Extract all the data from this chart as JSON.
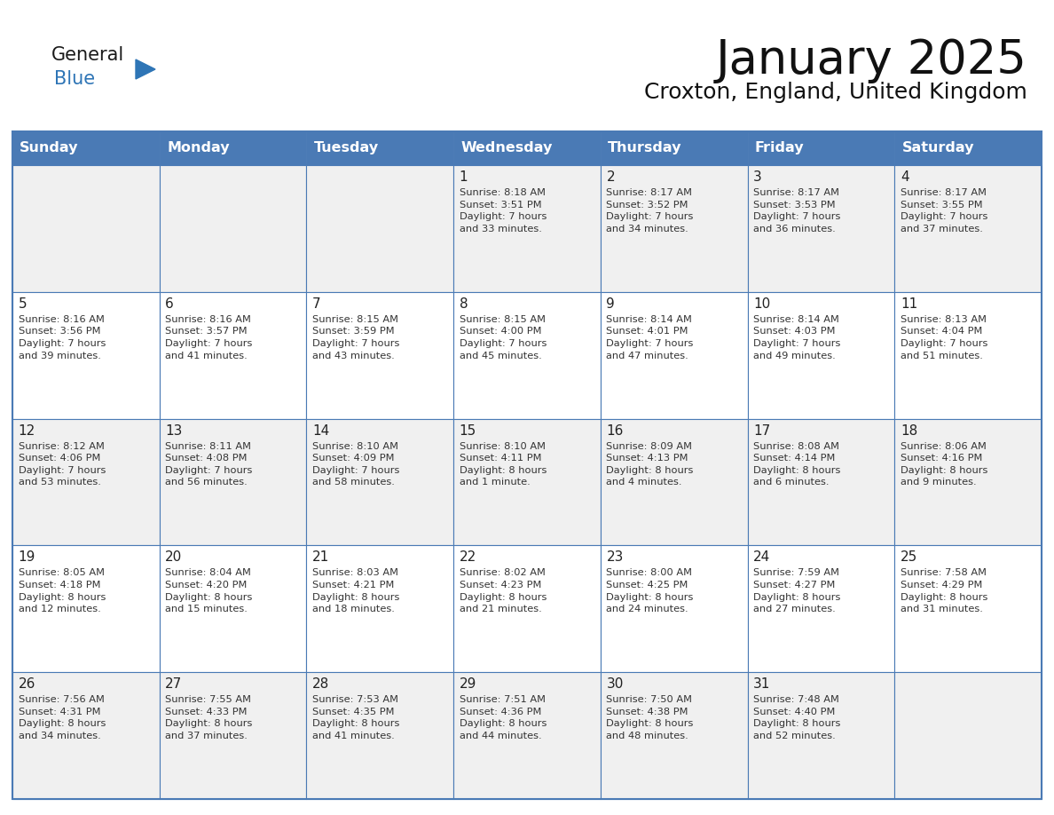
{
  "title": "January 2025",
  "subtitle": "Croxton, England, United Kingdom",
  "days_of_week": [
    "Sunday",
    "Monday",
    "Tuesday",
    "Wednesday",
    "Thursday",
    "Friday",
    "Saturday"
  ],
  "header_bg": "#4a7ab5",
  "header_text": "#FFFFFF",
  "cell_bg_row0": "#f0f0f0",
  "cell_bg_row1": "#ffffff",
  "cell_border": "#4a7ab5",
  "day_num_color": "#222222",
  "text_color": "#333333",
  "title_color": "#111111",
  "subtitle_color": "#111111",
  "logo_general_color": "#1a1a1a",
  "logo_blue_color": "#2E75B6",
  "figsize": [
    11.88,
    9.18
  ],
  "dpi": 100,
  "calendar": [
    [
      {
        "day": null,
        "info": ""
      },
      {
        "day": null,
        "info": ""
      },
      {
        "day": null,
        "info": ""
      },
      {
        "day": 1,
        "info": "Sunrise: 8:18 AM\nSunset: 3:51 PM\nDaylight: 7 hours\nand 33 minutes."
      },
      {
        "day": 2,
        "info": "Sunrise: 8:17 AM\nSunset: 3:52 PM\nDaylight: 7 hours\nand 34 minutes."
      },
      {
        "day": 3,
        "info": "Sunrise: 8:17 AM\nSunset: 3:53 PM\nDaylight: 7 hours\nand 36 minutes."
      },
      {
        "day": 4,
        "info": "Sunrise: 8:17 AM\nSunset: 3:55 PM\nDaylight: 7 hours\nand 37 minutes."
      }
    ],
    [
      {
        "day": 5,
        "info": "Sunrise: 8:16 AM\nSunset: 3:56 PM\nDaylight: 7 hours\nand 39 minutes."
      },
      {
        "day": 6,
        "info": "Sunrise: 8:16 AM\nSunset: 3:57 PM\nDaylight: 7 hours\nand 41 minutes."
      },
      {
        "day": 7,
        "info": "Sunrise: 8:15 AM\nSunset: 3:59 PM\nDaylight: 7 hours\nand 43 minutes."
      },
      {
        "day": 8,
        "info": "Sunrise: 8:15 AM\nSunset: 4:00 PM\nDaylight: 7 hours\nand 45 minutes."
      },
      {
        "day": 9,
        "info": "Sunrise: 8:14 AM\nSunset: 4:01 PM\nDaylight: 7 hours\nand 47 minutes."
      },
      {
        "day": 10,
        "info": "Sunrise: 8:14 AM\nSunset: 4:03 PM\nDaylight: 7 hours\nand 49 minutes."
      },
      {
        "day": 11,
        "info": "Sunrise: 8:13 AM\nSunset: 4:04 PM\nDaylight: 7 hours\nand 51 minutes."
      }
    ],
    [
      {
        "day": 12,
        "info": "Sunrise: 8:12 AM\nSunset: 4:06 PM\nDaylight: 7 hours\nand 53 minutes."
      },
      {
        "day": 13,
        "info": "Sunrise: 8:11 AM\nSunset: 4:08 PM\nDaylight: 7 hours\nand 56 minutes."
      },
      {
        "day": 14,
        "info": "Sunrise: 8:10 AM\nSunset: 4:09 PM\nDaylight: 7 hours\nand 58 minutes."
      },
      {
        "day": 15,
        "info": "Sunrise: 8:10 AM\nSunset: 4:11 PM\nDaylight: 8 hours\nand 1 minute."
      },
      {
        "day": 16,
        "info": "Sunrise: 8:09 AM\nSunset: 4:13 PM\nDaylight: 8 hours\nand 4 minutes."
      },
      {
        "day": 17,
        "info": "Sunrise: 8:08 AM\nSunset: 4:14 PM\nDaylight: 8 hours\nand 6 minutes."
      },
      {
        "day": 18,
        "info": "Sunrise: 8:06 AM\nSunset: 4:16 PM\nDaylight: 8 hours\nand 9 minutes."
      }
    ],
    [
      {
        "day": 19,
        "info": "Sunrise: 8:05 AM\nSunset: 4:18 PM\nDaylight: 8 hours\nand 12 minutes."
      },
      {
        "day": 20,
        "info": "Sunrise: 8:04 AM\nSunset: 4:20 PM\nDaylight: 8 hours\nand 15 minutes."
      },
      {
        "day": 21,
        "info": "Sunrise: 8:03 AM\nSunset: 4:21 PM\nDaylight: 8 hours\nand 18 minutes."
      },
      {
        "day": 22,
        "info": "Sunrise: 8:02 AM\nSunset: 4:23 PM\nDaylight: 8 hours\nand 21 minutes."
      },
      {
        "day": 23,
        "info": "Sunrise: 8:00 AM\nSunset: 4:25 PM\nDaylight: 8 hours\nand 24 minutes."
      },
      {
        "day": 24,
        "info": "Sunrise: 7:59 AM\nSunset: 4:27 PM\nDaylight: 8 hours\nand 27 minutes."
      },
      {
        "day": 25,
        "info": "Sunrise: 7:58 AM\nSunset: 4:29 PM\nDaylight: 8 hours\nand 31 minutes."
      }
    ],
    [
      {
        "day": 26,
        "info": "Sunrise: 7:56 AM\nSunset: 4:31 PM\nDaylight: 8 hours\nand 34 minutes."
      },
      {
        "day": 27,
        "info": "Sunrise: 7:55 AM\nSunset: 4:33 PM\nDaylight: 8 hours\nand 37 minutes."
      },
      {
        "day": 28,
        "info": "Sunrise: 7:53 AM\nSunset: 4:35 PM\nDaylight: 8 hours\nand 41 minutes."
      },
      {
        "day": 29,
        "info": "Sunrise: 7:51 AM\nSunset: 4:36 PM\nDaylight: 8 hours\nand 44 minutes."
      },
      {
        "day": 30,
        "info": "Sunrise: 7:50 AM\nSunset: 4:38 PM\nDaylight: 8 hours\nand 48 minutes."
      },
      {
        "day": 31,
        "info": "Sunrise: 7:48 AM\nSunset: 4:40 PM\nDaylight: 8 hours\nand 52 minutes."
      },
      {
        "day": null,
        "info": ""
      }
    ]
  ]
}
